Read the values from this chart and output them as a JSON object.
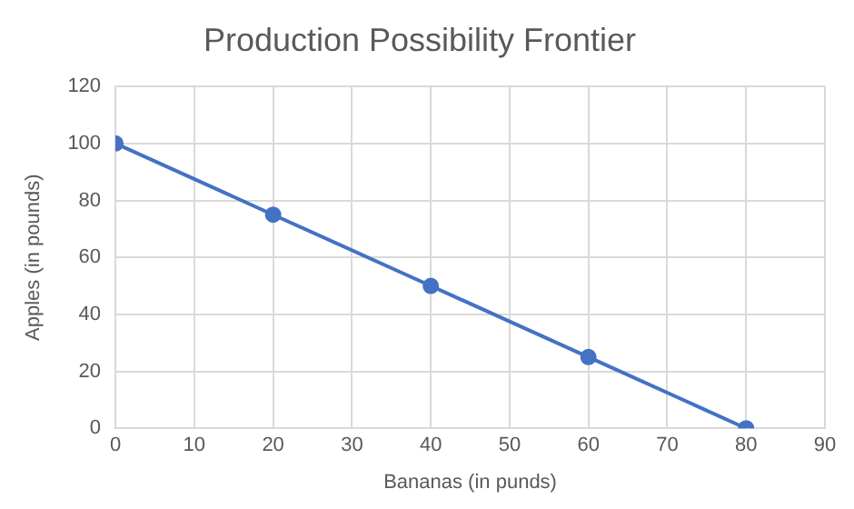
{
  "chart_data": {
    "type": "line",
    "title": "Production Possibility Frontier",
    "xlabel": "Bananas (in punds)",
    "ylabel": "Apples (in pounds)",
    "x": [
      0,
      20,
      40,
      60,
      80
    ],
    "series": [
      {
        "color": "#4472c4",
        "values": [
          100,
          75,
          50,
          25,
          0
        ]
      }
    ],
    "xlim": [
      0,
      90
    ],
    "xticks": [
      0,
      10,
      20,
      30,
      40,
      50,
      60,
      70,
      80,
      90
    ],
    "ylim": [
      0,
      120
    ],
    "yticks": [
      0,
      20,
      40,
      60,
      80,
      100,
      120
    ],
    "grid": true,
    "marker": "circle",
    "line_style": "solid",
    "legend": false
  }
}
